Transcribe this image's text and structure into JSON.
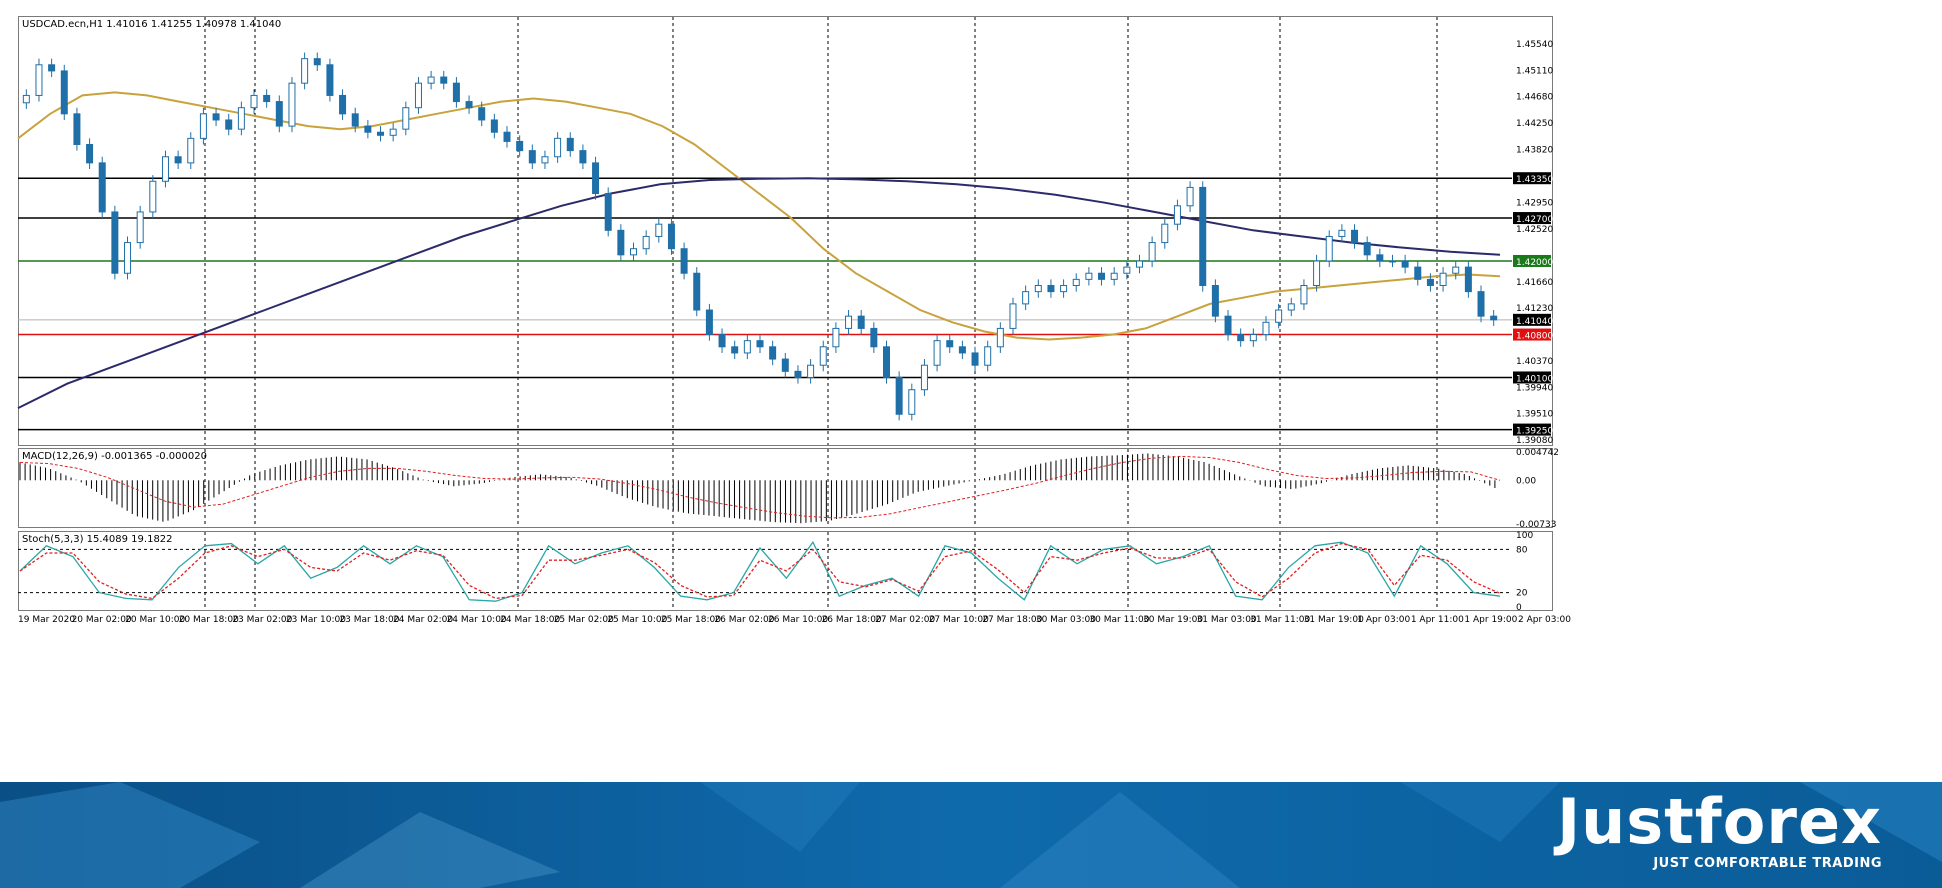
{
  "chart_header": {
    "symbol_info": "USDCAD.ecn,H1  1.41016 1.41255 1.40978 1.41040"
  },
  "macd_header": "MACD(12,26,9) -0.001365 -0.000020",
  "stoch_header": "Stoch(5,3,3) 15.4089 19.1822",
  "brand": {
    "logo": "Justforex",
    "tagline": "JUST COMFORTABLE TRADING"
  },
  "colors": {
    "bull_candle": "#ffffff",
    "bear_candle": "#1f6fa8",
    "ma_fast": "#c8a23c",
    "ma_slow": "#2b2b6b",
    "support_line": "#000000",
    "green_line": "#1a7a1a",
    "red_line": "#e01010",
    "macd_signal": "#e02020",
    "stoch_main": "#2aa6a6",
    "stoch_signal": "#e02020",
    "banner": "#0c67a6"
  },
  "chart_data": [
    {
      "type": "candlestick",
      "title": "USDCAD.ecn,H1",
      "price_axis_ticks": [
        "1.45540",
        "1.45110",
        "1.44680",
        "1.44250",
        "1.43820",
        "1.42950",
        "1.42520",
        "1.41660",
        "1.41230",
        "1.40370",
        "1.39940",
        "1.39510",
        "1.39080"
      ],
      "ylim": [
        1.3908,
        1.458
      ],
      "time_axis_ticks": [
        "19 Mar 2020",
        "20 Mar 02:00",
        "20 Mar 10:00",
        "20 Mar 18:00",
        "23 Mar 02:00",
        "23 Mar 10:00",
        "23 Mar 18:00",
        "24 Mar 02:00",
        "24 Mar 10:00",
        "24 Mar 18:00",
        "25 Mar 02:00",
        "25 Mar 10:00",
        "25 Mar 18:00",
        "26 Mar 02:00",
        "26 Mar 10:00",
        "26 Mar 18:00",
        "27 Mar 02:00",
        "27 Mar 10:00",
        "27 Mar 18:00",
        "30 Mar 03:00",
        "30 Mar 11:00",
        "30 Mar 19:00",
        "31 Mar 03:00",
        "31 Mar 11:00",
        "31 Mar 19:00",
        "1 Apr 03:00",
        "1 Apr 11:00",
        "1 Apr 19:00",
        "2 Apr 03:00"
      ],
      "horizontal_levels": [
        {
          "value": 1.4335,
          "label": "1.43350",
          "color": "#000000"
        },
        {
          "value": 1.427,
          "label": "1.42700",
          "color": "#000000"
        },
        {
          "value": 1.42,
          "label": "1.42000",
          "color": "#1a7a1a"
        },
        {
          "value": 1.4104,
          "label": "1.41040",
          "color": "#000000"
        },
        {
          "value": 1.408,
          "label": "1.40800",
          "color": "#e01010"
        },
        {
          "value": 1.401,
          "label": "1.40100",
          "color": "#000000"
        },
        {
          "value": 1.3925,
          "label": "1.39250",
          "color": "#000000"
        }
      ],
      "close_path": [
        1.447,
        1.452,
        1.451,
        1.444,
        1.439,
        1.436,
        1.428,
        1.418,
        1.423,
        1.428,
        1.433,
        1.437,
        1.436,
        1.44,
        1.444,
        1.443,
        1.4415,
        1.445,
        1.447,
        1.446,
        1.442,
        1.449,
        1.453,
        1.452,
        1.447,
        1.444,
        1.442,
        1.441,
        1.4405,
        1.4415,
        1.445,
        1.449,
        1.45,
        1.449,
        1.446,
        1.445,
        1.443,
        1.441,
        1.4395,
        1.438,
        1.436,
        1.437,
        1.44,
        1.438,
        1.436,
        1.431,
        1.425,
        1.421,
        1.422,
        1.424,
        1.426,
        1.422,
        1.418,
        1.412,
        1.408,
        1.406,
        1.405,
        1.407,
        1.406,
        1.404,
        1.402,
        1.401,
        1.403,
        1.406,
        1.409,
        1.411,
        1.409,
        1.406,
        1.401,
        1.395,
        1.399,
        1.403,
        1.407,
        1.406,
        1.405,
        1.403,
        1.406,
        1.409,
        1.413,
        1.415,
        1.416,
        1.415,
        1.416,
        1.417,
        1.418,
        1.417,
        1.418,
        1.419,
        1.42,
        1.423,
        1.426,
        1.429,
        1.432,
        1.416,
        1.411,
        1.408,
        1.407,
        1.408,
        1.41,
        1.412,
        1.413,
        1.416,
        1.42,
        1.424,
        1.425,
        1.423,
        1.421,
        1.42,
        1.42,
        1.419,
        1.417,
        1.416,
        1.418,
        1.419,
        1.415,
        1.411,
        1.4104
      ],
      "ma_fast_path": [
        1.44,
        1.444,
        1.447,
        1.4475,
        1.447,
        1.446,
        1.445,
        1.444,
        1.443,
        1.442,
        1.4415,
        1.442,
        1.443,
        1.444,
        1.445,
        1.446,
        1.4465,
        1.446,
        1.445,
        1.444,
        1.442,
        1.439,
        1.435,
        1.431,
        1.427,
        1.422,
        1.418,
        1.415,
        1.412,
        1.41,
        1.4085,
        1.4075,
        1.4072,
        1.4075,
        1.408,
        1.409,
        1.411,
        1.413,
        1.414,
        1.415,
        1.4155,
        1.416,
        1.4165,
        1.417,
        1.4175,
        1.4178,
        1.4175
      ],
      "ma_slow_path": [
        1.396,
        1.4,
        1.403,
        1.406,
        1.409,
        1.412,
        1.415,
        1.418,
        1.421,
        1.424,
        1.4265,
        1.429,
        1.431,
        1.4325,
        1.4332,
        1.4334,
        1.4335,
        1.4333,
        1.433,
        1.4325,
        1.4318,
        1.4308,
        1.4295,
        1.428,
        1.4265,
        1.425,
        1.424,
        1.423,
        1.4222,
        1.4215,
        1.421
      ]
    },
    {
      "type": "bar",
      "title": "MACD(12,26,9)",
      "values_label": "-0.001365 -0.000020",
      "axis_ticks": [
        "0.004742",
        "0.00",
        "-0.00733"
      ],
      "ylim": [
        -0.00733,
        0.004742
      ],
      "macd_path": [
        0.003,
        0.002,
        0.0,
        -0.003,
        -0.006,
        -0.007,
        -0.005,
        -0.002,
        0.001,
        0.0025,
        0.0035,
        0.004,
        0.0035,
        0.002,
        0.0,
        -0.001,
        -0.0005,
        0.0005,
        0.001,
        0.0005,
        -0.001,
        -0.003,
        -0.0045,
        -0.0055,
        -0.006,
        -0.0065,
        -0.007,
        -0.0072,
        -0.0068,
        -0.0055,
        -0.004,
        -0.002,
        -0.001,
        0.0,
        0.001,
        0.0025,
        0.0035,
        0.004,
        0.0042,
        0.0045,
        0.004,
        0.003,
        0.001,
        -0.001,
        -0.0015,
        -0.0005,
        0.001,
        0.002,
        0.0025,
        0.002,
        0.001,
        -0.0013
      ],
      "signal_path": [
        0.003,
        0.0028,
        0.002,
        0.0005,
        -0.0015,
        -0.0035,
        -0.0045,
        -0.004,
        -0.0025,
        -0.001,
        0.0005,
        0.0015,
        0.002,
        0.002,
        0.0015,
        0.0008,
        0.0003,
        0.0002,
        0.0004,
        0.0005,
        0.0002,
        -0.0006,
        -0.0016,
        -0.0028,
        -0.0038,
        -0.0046,
        -0.0054,
        -0.006,
        -0.0063,
        -0.0062,
        -0.0056,
        -0.0046,
        -0.0036,
        -0.0026,
        -0.0016,
        -0.0005,
        0.0008,
        0.002,
        0.003,
        0.0037,
        0.004,
        0.0038,
        0.003,
        0.0018,
        0.0008,
        0.0003,
        0.0004,
        0.0008,
        0.0013,
        0.0015,
        0.0014,
        0.0
      ]
    },
    {
      "type": "line",
      "title": "Stoch(5,3,3)",
      "values_label": "15.4089 19.1822",
      "axis_ticks": [
        "100",
        "80",
        "20",
        "0"
      ],
      "ylim": [
        0,
        100
      ],
      "main_path": [
        50,
        85,
        70,
        20,
        12,
        10,
        55,
        85,
        88,
        60,
        85,
        40,
        55,
        85,
        60,
        85,
        70,
        10,
        8,
        20,
        85,
        60,
        75,
        85,
        55,
        15,
        10,
        20,
        82,
        40,
        90,
        15,
        30,
        40,
        15,
        85,
        75,
        40,
        10,
        85,
        60,
        80,
        85,
        60,
        70,
        85,
        15,
        10,
        55,
        85,
        90,
        75,
        15,
        85,
        60,
        20,
        15
      ],
      "signal_path": [
        50,
        75,
        75,
        35,
        18,
        12,
        40,
        75,
        85,
        70,
        80,
        55,
        50,
        75,
        65,
        78,
        72,
        30,
        12,
        16,
        65,
        65,
        72,
        80,
        62,
        30,
        14,
        16,
        65,
        50,
        80,
        35,
        28,
        38,
        22,
        70,
        78,
        52,
        20,
        70,
        65,
        75,
        82,
        68,
        68,
        80,
        35,
        14,
        40,
        75,
        88,
        80,
        30,
        72,
        65,
        35,
        19
      ]
    }
  ]
}
